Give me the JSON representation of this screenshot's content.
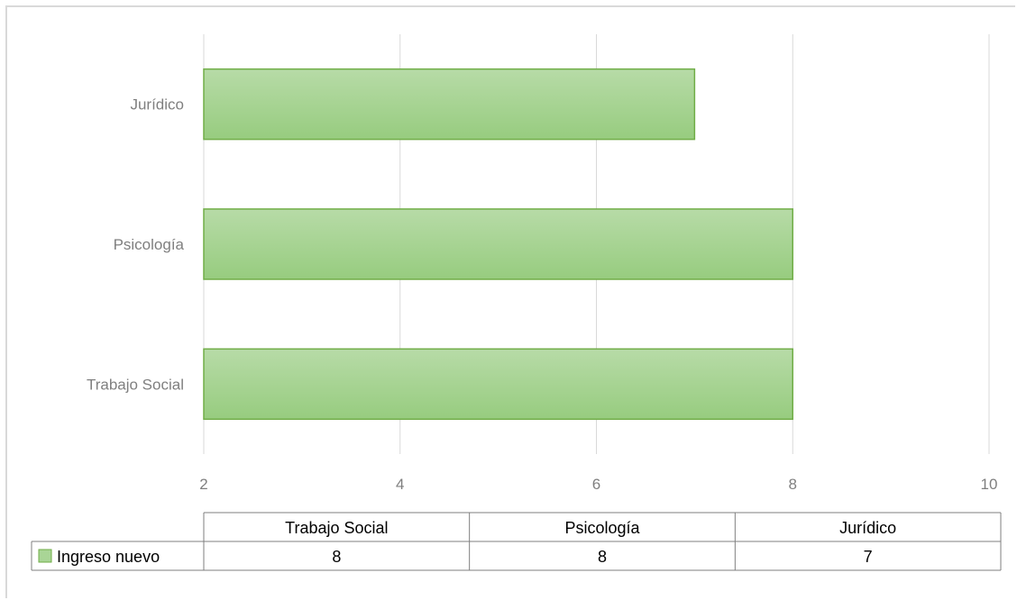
{
  "chart_data": {
    "type": "bar",
    "orientation": "horizontal",
    "categories": [
      "Trabajo Social",
      "Psicología",
      "Jurídico"
    ],
    "series": [
      {
        "name": "Ingreso nuevo",
        "values": [
          8,
          8,
          7
        ],
        "color": "#9fcf8a",
        "border_color": "#70ad47"
      }
    ],
    "xlim": [
      2,
      10
    ],
    "x_ticks": [
      2,
      4,
      6,
      8,
      10
    ],
    "grid": true,
    "legend": "data-table-below",
    "data_table": {
      "columns": [
        "Trabajo Social",
        "Psicología",
        "Jurídico"
      ],
      "rows": [
        {
          "label": "Ingreso nuevo",
          "values": [
            "8",
            "8",
            "7"
          ]
        }
      ]
    }
  }
}
